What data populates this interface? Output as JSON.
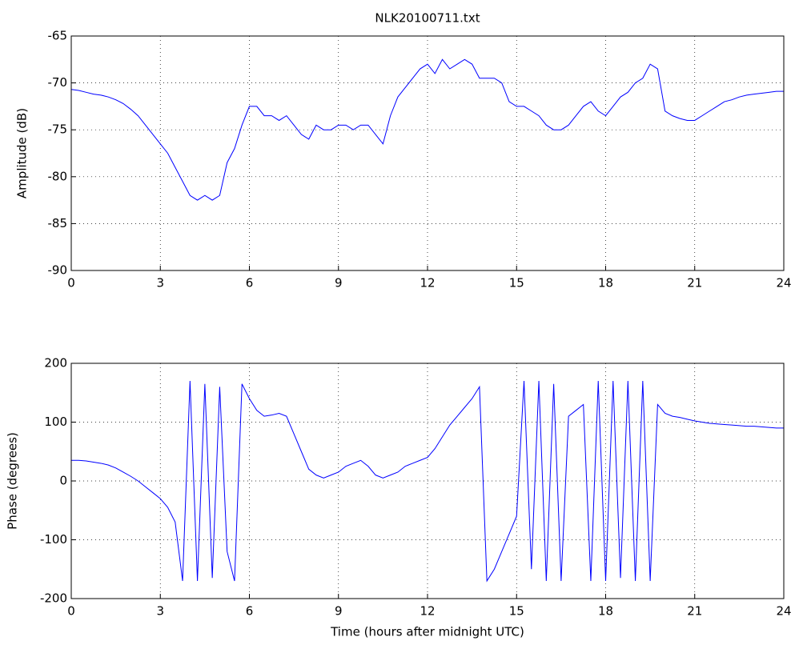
{
  "chart_data": [
    {
      "type": "line",
      "title": "NLK20100711.txt",
      "ylabel": "Amplitude (dB)",
      "grid": true,
      "xlim": [
        0,
        24
      ],
      "xticks": [
        0,
        3,
        6,
        9,
        12,
        15,
        18,
        21,
        24
      ],
      "ylim": [
        -90,
        -65
      ],
      "yticks": [
        -90,
        -85,
        -80,
        -75,
        -70,
        -65
      ],
      "x": [
        0,
        0.25,
        0.5,
        0.75,
        1,
        1.25,
        1.5,
        1.75,
        2,
        2.25,
        2.5,
        2.75,
        3,
        3.25,
        3.5,
        3.75,
        4,
        4.25,
        4.5,
        4.75,
        5,
        5.25,
        5.5,
        5.75,
        6,
        6.25,
        6.5,
        6.75,
        7,
        7.25,
        7.5,
        7.75,
        8,
        8.25,
        8.5,
        8.75,
        9,
        9.25,
        9.5,
        9.75,
        10,
        10.25,
        10.5,
        10.75,
        11,
        11.25,
        11.5,
        11.75,
        12,
        12.25,
        12.5,
        12.75,
        13,
        13.25,
        13.5,
        13.75,
        14,
        14.25,
        14.5,
        14.75,
        15,
        15.25,
        15.5,
        15.75,
        16,
        16.25,
        16.5,
        16.75,
        17,
        17.25,
        17.5,
        17.75,
        18,
        18.25,
        18.5,
        18.75,
        19,
        19.25,
        19.5,
        19.75,
        20,
        20.25,
        20.5,
        20.75,
        21,
        21.25,
        21.5,
        21.75,
        22,
        22.25,
        22.5,
        22.75,
        23,
        23.25,
        23.5,
        23.75,
        24
      ],
      "series": [
        {
          "color": "#0000ff",
          "values": [
            -70.7,
            -70.8,
            -71,
            -71.2,
            -71.3,
            -71.5,
            -71.8,
            -72.2,
            -72.8,
            -73.5,
            -74.5,
            -75.5,
            -76.5,
            -77.5,
            -79,
            -80.5,
            -82,
            -82.5,
            -82,
            -82.5,
            -82,
            -78.5,
            -77,
            -74.5,
            -72.5,
            -72.5,
            -73.5,
            -73.5,
            -74,
            -73.5,
            -74.5,
            -75.5,
            -76,
            -74.5,
            -75,
            -75,
            -74.5,
            -74.5,
            -75,
            -74.5,
            -74.5,
            -75.5,
            -76.5,
            -73.5,
            -71.5,
            -70.5,
            -69.5,
            -68.5,
            -68,
            -69,
            -67.5,
            -68.5,
            -68,
            -67.5,
            -68,
            -69.5,
            -69.5,
            -69.5,
            -70,
            -72,
            -72.5,
            -72.5,
            -73,
            -73.5,
            -74.5,
            -75,
            -75,
            -74.5,
            -73.5,
            -72.5,
            -72,
            -73,
            -73.5,
            -72.5,
            -71.5,
            -71,
            -70,
            -69.5,
            -68,
            -68.5,
            -73,
            -73.5,
            -73.8,
            -74,
            -74,
            -73.5,
            -73,
            -72.5,
            -72,
            -71.8,
            -71.5,
            -71.3,
            -71.2,
            -71.1,
            -71,
            -70.9,
            -70.9
          ]
        }
      ]
    },
    {
      "type": "line",
      "ylabel": "Phase (degrees)",
      "xlabel": "Time (hours after midnight UTC)",
      "grid": true,
      "xlim": [
        0,
        24
      ],
      "xticks": [
        0,
        3,
        6,
        9,
        12,
        15,
        18,
        21,
        24
      ],
      "ylim": [
        -200,
        200
      ],
      "yticks": [
        -200,
        -100,
        0,
        100,
        200
      ],
      "x": [
        0,
        0.25,
        0.5,
        0.75,
        1,
        1.25,
        1.5,
        1.75,
        2,
        2.25,
        2.5,
        2.75,
        3,
        3.25,
        3.5,
        3.75,
        4,
        4.25,
        4.5,
        4.75,
        5,
        5.25,
        5.5,
        5.75,
        6,
        6.25,
        6.5,
        6.75,
        7,
        7.25,
        7.5,
        7.75,
        8,
        8.25,
        8.5,
        8.75,
        9,
        9.25,
        9.5,
        9.75,
        10,
        10.25,
        10.5,
        10.75,
        11,
        11.25,
        11.5,
        11.75,
        12,
        12.25,
        12.5,
        12.75,
        13,
        13.25,
        13.5,
        13.75,
        14,
        14.25,
        14.5,
        14.75,
        15,
        15.25,
        15.5,
        15.75,
        16,
        16.25,
        16.5,
        16.75,
        17,
        17.25,
        17.5,
        17.75,
        18,
        18.25,
        18.5,
        18.75,
        19,
        19.25,
        19.5,
        19.75,
        20,
        20.25,
        20.5,
        20.75,
        21,
        21.25,
        21.5,
        21.75,
        22,
        22.25,
        22.5,
        22.75,
        23,
        23.25,
        23.5,
        23.75,
        24
      ],
      "series": [
        {
          "color": "#0000ff",
          "values": [
            35,
            35,
            34,
            32,
            30,
            27,
            22,
            15,
            8,
            0,
            -10,
            -20,
            -30,
            -45,
            -70,
            -170,
            170,
            -170,
            165,
            -165,
            160,
            -120,
            -170,
            165,
            140,
            120,
            110,
            112,
            115,
            110,
            80,
            50,
            20,
            10,
            5,
            10,
            15,
            25,
            30,
            35,
            25,
            10,
            5,
            10,
            15,
            25,
            30,
            35,
            40,
            55,
            75,
            95,
            110,
            125,
            140,
            160,
            -170,
            -150,
            -120,
            -90,
            -60,
            170,
            -150,
            170,
            -170,
            165,
            -170,
            110,
            120,
            130,
            -170,
            170,
            -170,
            170,
            -165,
            170,
            -170,
            170,
            -170,
            130,
            115,
            110,
            108,
            105,
            102,
            100,
            98,
            97,
            96,
            95,
            94,
            93,
            93,
            92,
            91,
            90,
            90
          ]
        }
      ]
    }
  ]
}
